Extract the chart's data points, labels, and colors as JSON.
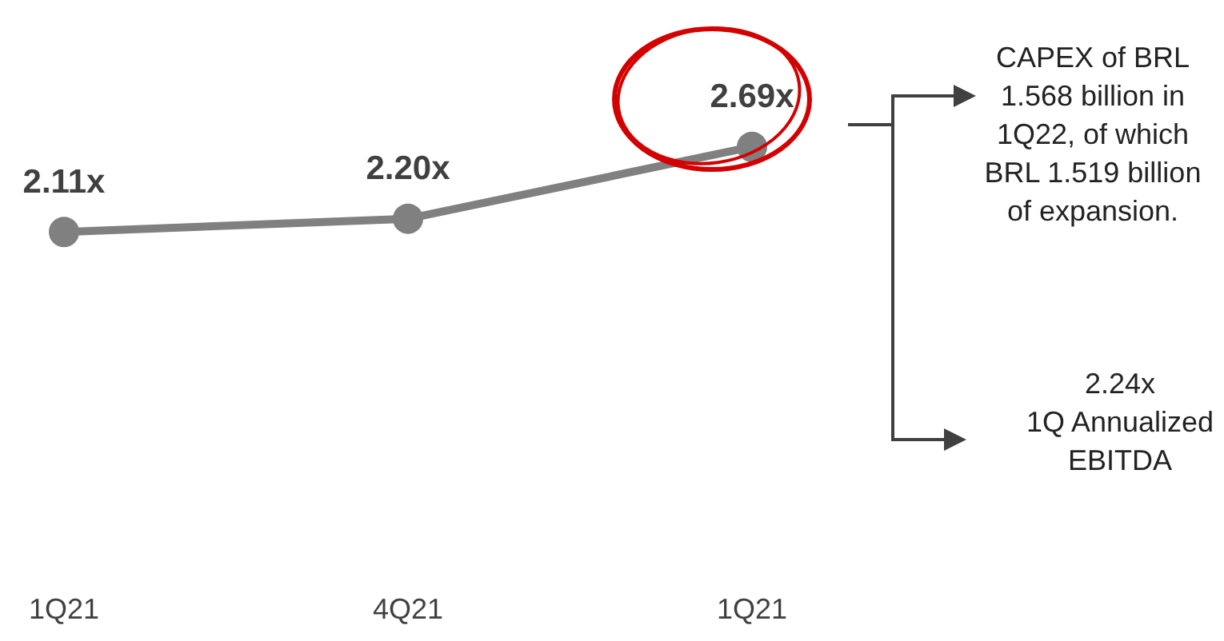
{
  "chart_data": {
    "type": "line",
    "categories": [
      "1Q21",
      "4Q21",
      "1Q21"
    ],
    "series": [
      {
        "color": "#808080",
        "values": [
          2.11,
          2.2,
          2.69
        ],
        "value_labels": [
          "2.11x",
          "2.20x",
          "2.69x"
        ]
      }
    ],
    "marker": "circle",
    "annotations": [
      "CAPEX of BRL 1.568 billion in 1Q22, of which BRL 1.519 billion of expansion.",
      "2.24x\n1Q Annualized\nEBITDA"
    ]
  }
}
